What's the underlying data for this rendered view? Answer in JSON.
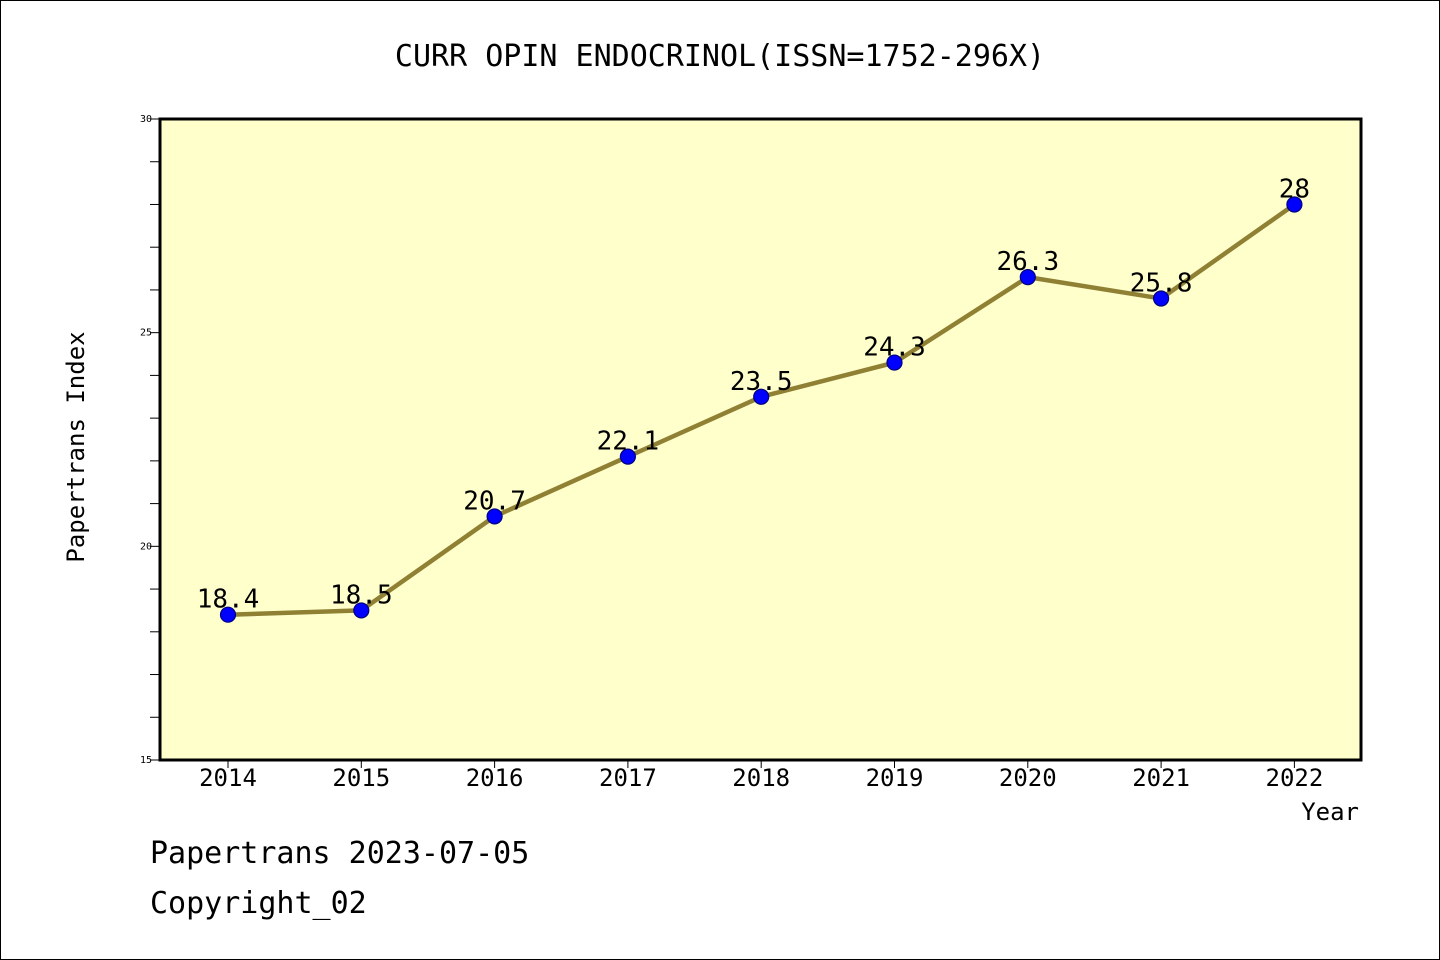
{
  "chart_data": {
    "type": "line",
    "title": "CURR OPIN ENDOCRINOL(ISSN=1752-296X)",
    "xlabel": "Year",
    "ylabel": "Papertrans Index",
    "categories": [
      "2014",
      "2015",
      "2016",
      "2017",
      "2018",
      "2019",
      "2020",
      "2021",
      "2022"
    ],
    "series": [
      {
        "values": [
          18.4,
          18.5,
          20.7,
          22.1,
          23.5,
          24.3,
          26.3,
          25.8,
          28
        ]
      }
    ],
    "data_labels": [
      "18.4",
      "18.5",
      "20.7",
      "22.1",
      "23.5",
      "24.3",
      "26.3",
      "25.8",
      "28"
    ],
    "ylim": [
      15,
      30
    ],
    "yticks": [
      15,
      20,
      25,
      30
    ],
    "y_minor_step": 1,
    "grid": false,
    "legend": "none"
  },
  "colors": {
    "plot_background": "#ffffcc",
    "line": "#8f8033",
    "marker": "#0000ff",
    "marker_edge": "#000080",
    "axes": "#000000"
  },
  "footer": {
    "source": "Papertrans 2023-07-05",
    "copyright": "Copyright_02"
  }
}
